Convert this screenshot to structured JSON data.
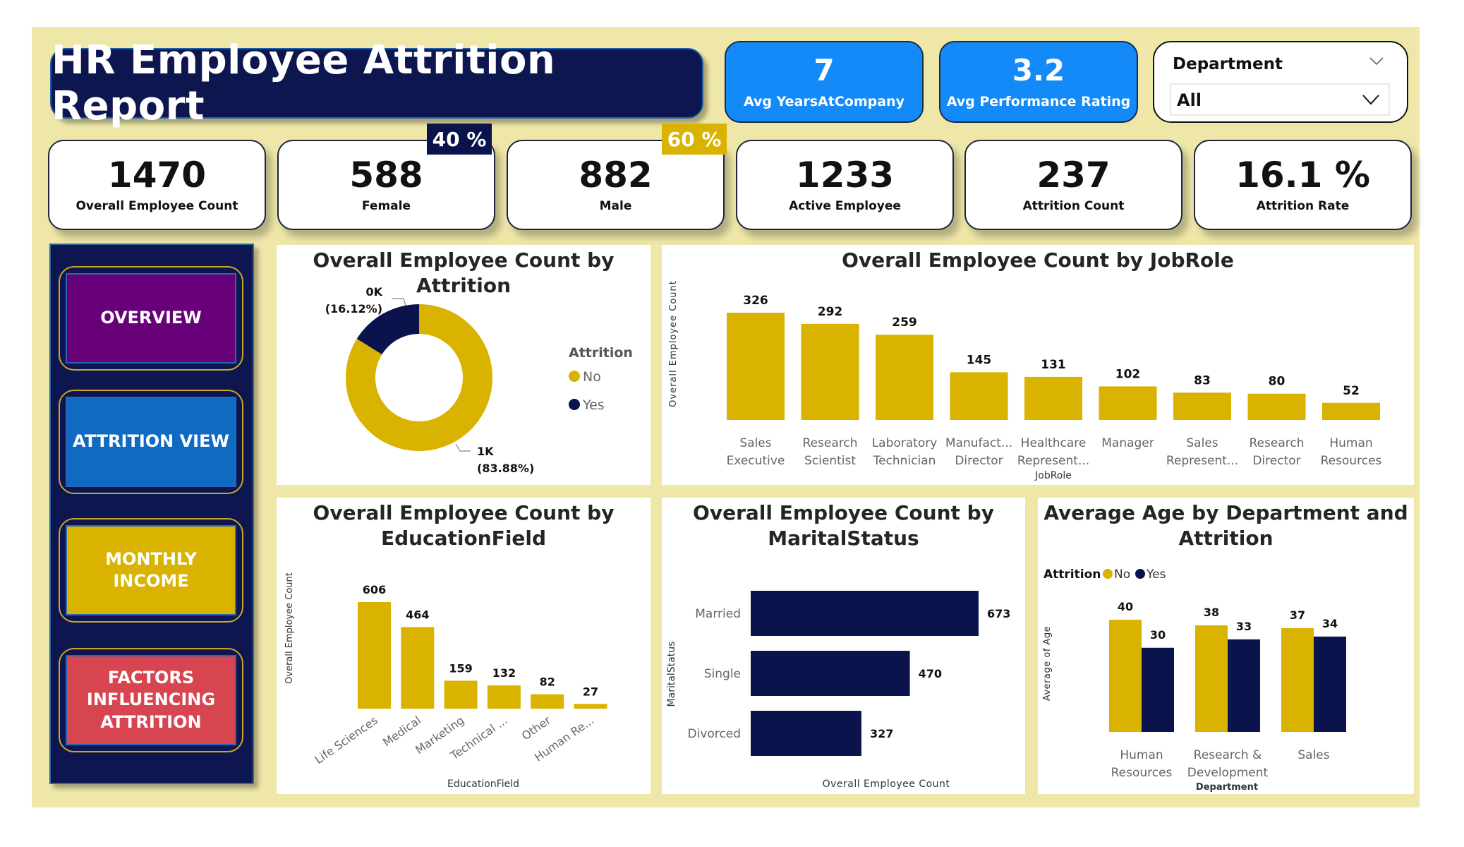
{
  "header": {
    "title": "HR Employee Attrition Report"
  },
  "avg_cards": [
    {
      "value": "7",
      "label": "Avg YearsAtCompany"
    },
    {
      "value": "3.2",
      "label": "Avg Performance Rating"
    }
  ],
  "slicer": {
    "label": "Department",
    "value": "All"
  },
  "kpis": [
    {
      "value": "1470",
      "label": "Overall Employee Count"
    },
    {
      "value": "588",
      "label": "Female"
    },
    {
      "value": "882",
      "label": "Male"
    },
    {
      "value": "1233",
      "label": "Active Employee"
    },
    {
      "value": "237",
      "label": "Attrition Count"
    },
    {
      "value": "16.1 %",
      "label": "Attrition Rate"
    }
  ],
  "badges": {
    "female_pct": "40 %",
    "male_pct": "60 %"
  },
  "nav": [
    {
      "label": "OVERVIEW",
      "color": "#670079"
    },
    {
      "label": "ATTRITION VIEW",
      "color": "#0f6bc1"
    },
    {
      "label": "MONTHLY INCOME",
      "color": "#d9b300"
    },
    {
      "label": "FACTORS INFLUENCING ATTRITION",
      "color": "#d64550"
    }
  ],
  "colors": {
    "gold": "#d9b300",
    "navy": "#0b134d",
    "blue": "#138af8",
    "beige": "#efe7a8"
  },
  "chart_data": [
    {
      "id": "attrition",
      "type": "pie",
      "title": "Overall Employee Count by Attrition",
      "legend_title": "Attrition",
      "legend_position": "right",
      "slices": [
        {
          "name": "No",
          "value": 1233,
          "percent": 83.88,
          "label": "1K",
          "pct_label": "(83.88%)",
          "color": "#d9b300"
        },
        {
          "name": "Yes",
          "value": 237,
          "percent": 16.12,
          "label": "0K",
          "pct_label": "(16.12%)",
          "color": "#0b134d"
        }
      ]
    },
    {
      "id": "jobrole",
      "type": "bar",
      "title": "Overall Employee Count by JobRole",
      "xlabel": "JobRole",
      "ylabel": "Overall Employee Count",
      "categories": [
        [
          "Sales",
          "Executive"
        ],
        [
          "Research",
          "Scientist"
        ],
        [
          "Laboratory",
          "Technician"
        ],
        [
          "Manufact...",
          "Director"
        ],
        [
          "Healthcare",
          "Represent..."
        ],
        [
          "Manager",
          ""
        ],
        [
          "Sales",
          "Represent..."
        ],
        [
          "Research",
          "Director"
        ],
        [
          "Human",
          "Resources"
        ]
      ],
      "values": [
        326,
        292,
        259,
        145,
        131,
        102,
        83,
        80,
        52
      ],
      "ylim": [
        0,
        326
      ],
      "color": "#d9b300"
    },
    {
      "id": "education",
      "type": "bar",
      "title": [
        "Overall Employee Count by",
        "EducationField"
      ],
      "xlabel": "EducationField",
      "ylabel": "Overall Employee Count",
      "categories": [
        "Life Sciences",
        "Medical",
        "Marketing",
        "Technical ...",
        "Other",
        "Human Re..."
      ],
      "values": [
        606,
        464,
        159,
        132,
        82,
        27
      ],
      "ylim": [
        0,
        606
      ],
      "color": "#d9b300"
    },
    {
      "id": "marital",
      "type": "bar",
      "orientation": "horizontal",
      "title": [
        "Overall Employee Count by",
        "MaritalStatus"
      ],
      "xlabel": "Overall Employee Count",
      "ylabel": "MaritalStatus",
      "categories": [
        "Married",
        "Single",
        "Divorced"
      ],
      "values": [
        673,
        470,
        327
      ],
      "xlim": [
        0,
        673
      ],
      "color": "#0b134d"
    },
    {
      "id": "avgage",
      "type": "bar",
      "title": [
        "Average Age by Department and",
        "Attrition"
      ],
      "xlabel": "Department",
      "ylabel": "Average of Age",
      "legend_title": "Attrition",
      "legend_position": "top-left",
      "categories": [
        [
          "Human",
          "Resources"
        ],
        [
          "Research &",
          "Development"
        ],
        [
          "Sales",
          ""
        ]
      ],
      "series": [
        {
          "name": "No",
          "values": [
            40,
            38,
            37
          ],
          "color": "#d9b300"
        },
        {
          "name": "Yes",
          "values": [
            30,
            33,
            34
          ],
          "color": "#0b134d"
        }
      ],
      "ylim": [
        0,
        40
      ]
    }
  ]
}
